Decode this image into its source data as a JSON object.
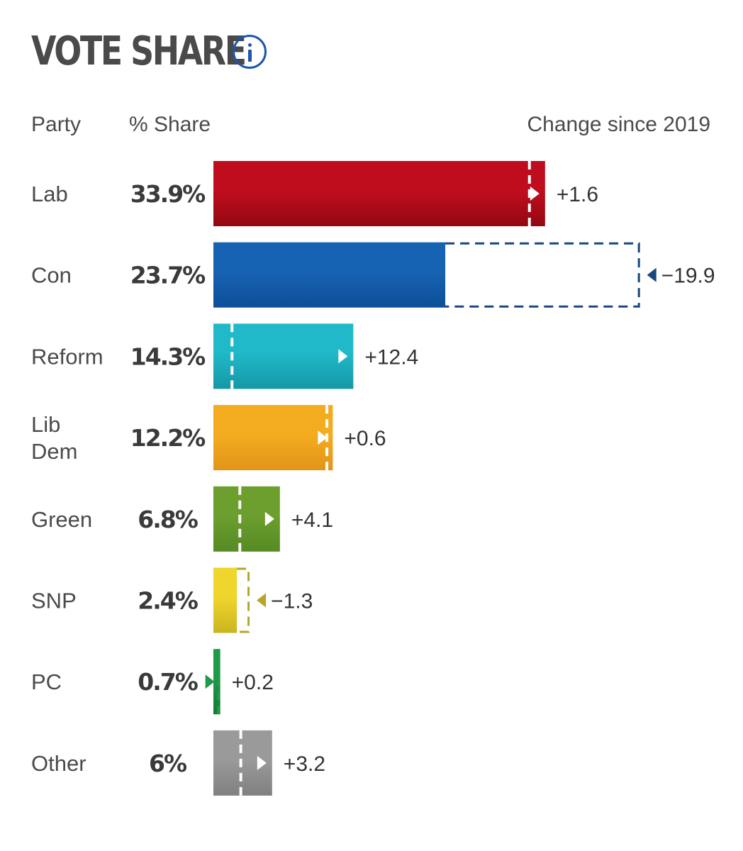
{
  "header": {
    "title": "VOTE SHARE",
    "col_party": "Party",
    "col_share": "% Share",
    "col_change": "Change since 2019"
  },
  "chart_data": {
    "type": "bar",
    "title": "VOTE SHARE",
    "orientation": "horizontal",
    "categories": [
      "Lab",
      "Con",
      "Reform",
      "Lib Dem",
      "Green",
      "SNP",
      "PC",
      "Other"
    ],
    "share_labels": [
      "33.9%",
      "23.7%",
      "14.3%",
      "12.2%",
      "6.8%",
      "2.4%",
      "0.7%",
      "6%"
    ],
    "values": [
      33.9,
      23.7,
      14.3,
      12.2,
      6.8,
      2.4,
      0.7,
      6
    ],
    "change_labels": [
      "+1.6",
      "−19.9",
      "+12.4",
      "+0.6",
      "+4.1",
      "−1.3",
      "+0.2",
      "+3.2"
    ],
    "changes": [
      1.6,
      -19.9,
      12.4,
      0.6,
      4.1,
      -1.3,
      0.2,
      3.2
    ],
    "previous_values_2019": [
      32.3,
      43.6,
      1.9,
      11.6,
      2.7,
      3.7,
      0.5,
      2.8
    ],
    "colors": [
      "#c00d1e",
      "#1763b3",
      "#1fb9c9",
      "#f3ac1f",
      "#6c9f2e",
      "#f0d52c",
      "#1f9a48",
      "#9a9a9a"
    ],
    "bar_colors_dark": [
      "#930812",
      "#0d4f98",
      "#1697a6",
      "#e49419",
      "#568a24",
      "#c9b51f",
      "#117a33",
      "#808080"
    ],
    "marker_colors": [
      "#ffffff",
      "#17487f",
      "#ffffff",
      "#ffffff",
      "#ffffff",
      "#b5a52a",
      "#1f9a48",
      "#ffffff"
    ],
    "xlim": [
      0,
      50
    ]
  }
}
